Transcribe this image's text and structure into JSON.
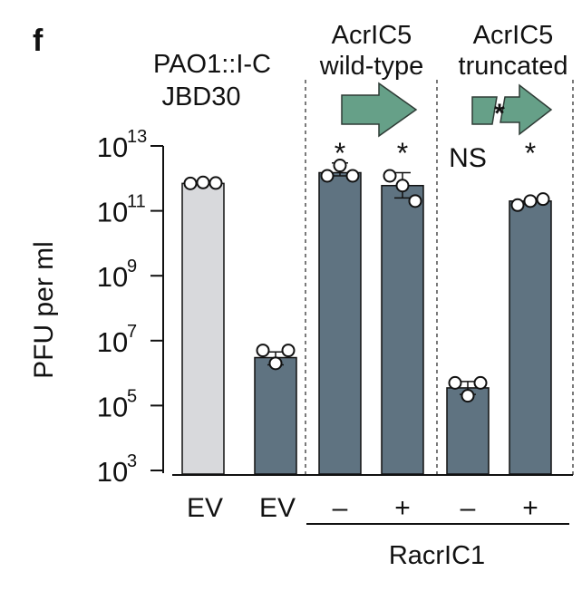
{
  "panel_label": "f",
  "chart_data": {
    "type": "bar",
    "ylabel": "PFU per ml",
    "y_scale": "log10",
    "ylim": [
      1000,
      10000000000000
    ],
    "yticks": [
      {
        "base": "10",
        "exp": "13",
        "value": 10000000000000
      },
      {
        "base": "10",
        "exp": "11",
        "value": 100000000000
      },
      {
        "base": "10",
        "exp": "9",
        "value": 1000000000
      },
      {
        "base": "10",
        "exp": "7",
        "value": 10000000
      },
      {
        "base": "10",
        "exp": "5",
        "value": 100000
      },
      {
        "base": "10",
        "exp": "3",
        "value": 1000
      }
    ],
    "header": {
      "strain_line1": "PAO1::I-C",
      "strain_line2": "JBD30",
      "group1_line1": "AcrIC5",
      "group1_line2": "wild-type",
      "group2_line1": "AcrIC5",
      "group2_line2": "truncated"
    },
    "categories": [
      "EV",
      "EV",
      "–",
      "+",
      "–",
      "+"
    ],
    "group_label": "RacrIC1",
    "colors": {
      "control": "#d8d9dc",
      "bar": "#5f7381",
      "arrow": "#66a088",
      "star": "#c2185b"
    },
    "bars": [
      {
        "label": "EV",
        "value": 700000000000,
        "err": [
          700000000000,
          700000000000
        ],
        "color": "control",
        "points": [
          700000000000,
          750000000000,
          720000000000
        ],
        "sig": ""
      },
      {
        "label": "EV",
        "value": 3000000,
        "err": [
          1800000,
          4500000
        ],
        "color": "bar",
        "points": [
          5000000,
          2000000,
          5000000
        ],
        "sig": ""
      },
      {
        "label": "–",
        "value": 1500000000000,
        "err": [
          1200000000000,
          3000000000000
        ],
        "color": "bar",
        "points": [
          1200000000000,
          2500000000000,
          1200000000000
        ],
        "sig": "*"
      },
      {
        "label": "+",
        "value": 600000000000,
        "err": [
          250000000000,
          1500000000000
        ],
        "color": "bar",
        "points": [
          1200000000000,
          600000000000,
          200000000000
        ],
        "sig": "*"
      },
      {
        "label": "–",
        "value": 350000,
        "err": [
          220000,
          550000
        ],
        "color": "bar",
        "points": [
          500000,
          200000,
          500000
        ],
        "sig": "NS"
      },
      {
        "label": "+",
        "value": 200000000000,
        "err": [
          200000000000,
          200000000000
        ],
        "color": "bar",
        "points": [
          150000000000,
          200000000000,
          230000000000
        ],
        "sig": "*"
      }
    ]
  }
}
